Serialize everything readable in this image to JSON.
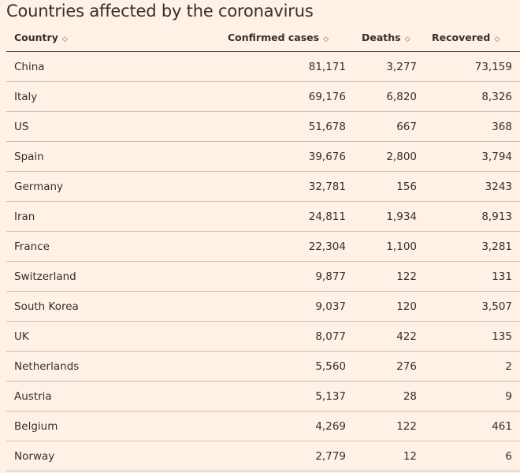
{
  "title": "Countries affected by the coronavirus",
  "columns": [
    {
      "label": "Country",
      "sort_icon": "sort-icon"
    },
    {
      "label": "Confirmed cases",
      "sort_icon": "sort-icon"
    },
    {
      "label": "Deaths",
      "sort_icon": "sort-icon"
    },
    {
      "label": "Recovered",
      "sort_icon": "sort-icon"
    }
  ],
  "sort_glyph": "◇",
  "rows": [
    [
      "China",
      "81,171",
      "3,277",
      "73,159"
    ],
    [
      "Italy",
      "69,176",
      "6,820",
      "8,326"
    ],
    [
      "US",
      "51,678",
      "667",
      "368"
    ],
    [
      "Spain",
      "39,676",
      "2,800",
      "3,794"
    ],
    [
      "Germany",
      "32,781",
      "156",
      "3243"
    ],
    [
      "Iran",
      "24,811",
      "1,934",
      "8,913"
    ],
    [
      "France",
      "22,304",
      "1,100",
      "3,281"
    ],
    [
      "Switzerland",
      "9,877",
      "122",
      "131"
    ],
    [
      "South Korea",
      "9,037",
      "120",
      "3,507"
    ],
    [
      "UK",
      "8,077",
      "422",
      "135"
    ],
    [
      "Netherlands",
      "5,560",
      "276",
      "2"
    ],
    [
      "Austria",
      "5,137",
      "28",
      "9"
    ],
    [
      "Belgium",
      "4,269",
      "122",
      "461"
    ],
    [
      "Norway",
      "2,779",
      "12",
      "6"
    ]
  ],
  "colors": {
    "background": "#fff1e5",
    "text": "#33302e",
    "rule": "#ccc1b7"
  }
}
